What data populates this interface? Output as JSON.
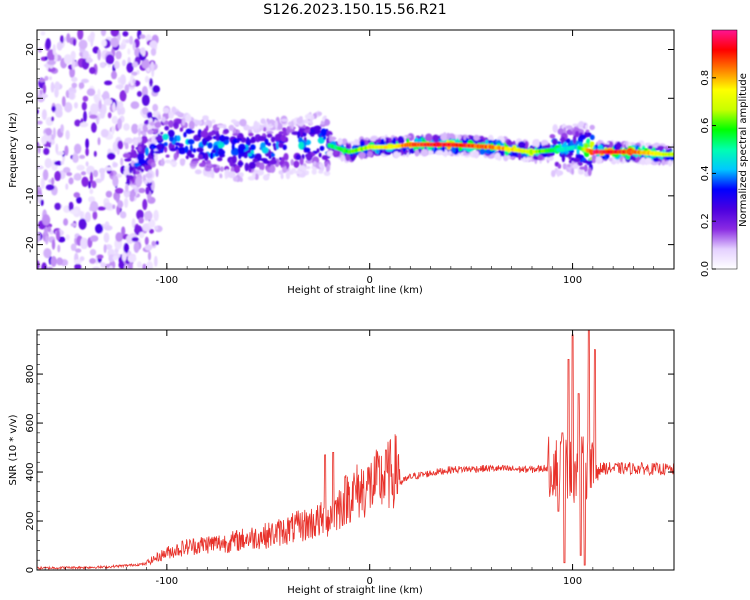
{
  "title": "S126.2023.150.15.56.R21",
  "chart_data": [
    {
      "type": "heatmap",
      "xlabel": "Height of straight line (km)",
      "ylabel": "Frequency (Hz)",
      "xlim": [
        -164,
        150
      ],
      "ylim": [
        -25,
        24
      ],
      "xticks": [
        -100,
        0,
        100
      ],
      "yticks": [
        -20,
        -10,
        0,
        10,
        20
      ],
      "colorbar": {
        "label": "Normalized spectral amplitude",
        "range": [
          0,
          1
        ],
        "ticks": [
          "0.0",
          "0.2",
          "0.4",
          "0.6",
          "0.8"
        ],
        "tick_values": [
          0,
          0.2,
          0.4,
          0.6,
          0.8
        ],
        "colormap": [
          "#ffffff",
          "#e4d0ff",
          "#8a2be2",
          "#4b00e0",
          "#0000ff",
          "#00c8ff",
          "#00ffb0",
          "#00ff00",
          "#c8ff00",
          "#ffff00",
          "#ff8000",
          "#ff0000",
          "#ff1493"
        ]
      },
      "ridge": {
        "x": [
          -120,
          -100,
          -80,
          -60,
          -40,
          -25,
          -10,
          0,
          10,
          20,
          40,
          60,
          80,
          95,
          102,
          110,
          130,
          145
        ],
        "freq": [
          -5,
          2,
          0,
          -1,
          0,
          1,
          -1,
          0,
          0,
          0.5,
          0.5,
          0,
          -1,
          -0.5,
          0,
          -1,
          -1,
          -1.5
        ],
        "amplitude": [
          0.35,
          0.45,
          0.5,
          0.45,
          0.4,
          0.5,
          0.6,
          0.7,
          0.75,
          0.9,
          0.95,
          0.85,
          0.7,
          0.5,
          0.45,
          0.95,
          0.9,
          0.7
        ]
      }
    },
    {
      "type": "line",
      "xlabel": "Height of straight line (km)",
      "ylabel": "SNR (10 * v/v)",
      "xlim": [
        -164,
        150
      ],
      "ylim": [
        0,
        980
      ],
      "xticks": [
        -100,
        0,
        100
      ],
      "yticks": [
        0,
        200,
        400,
        600,
        800
      ],
      "color": "#e8312a",
      "envelope": {
        "x": [
          -164,
          -130,
          -110,
          -100,
          -90,
          -80,
          -70,
          -60,
          -50,
          -40,
          -30,
          -20,
          -10,
          0,
          10,
          20,
          40,
          60,
          80,
          90,
          95,
          100,
          105,
          110,
          115,
          130,
          150
        ],
        "y": [
          8,
          12,
          25,
          60,
          80,
          90,
          95,
          110,
          120,
          140,
          160,
          180,
          260,
          290,
          330,
          380,
          410,
          415,
          410,
          420,
          430,
          400,
          420,
          410,
          415,
          415,
          410
        ]
      },
      "spikes": [
        {
          "x": -22,
          "y": 470
        },
        {
          "x": -18,
          "y": 480
        },
        {
          "x": 8,
          "y": 490
        },
        {
          "x": 95,
          "y": 560
        },
        {
          "x": 98,
          "y": 860
        },
        {
          "x": 100,
          "y": 960
        },
        {
          "x": 103,
          "y": 720
        },
        {
          "x": 108,
          "y": 980
        },
        {
          "x": 111,
          "y": 900
        }
      ],
      "dips": [
        {
          "x": 93,
          "y": 240
        },
        {
          "x": 96,
          "y": 30
        },
        {
          "x": 104,
          "y": 60
        },
        {
          "x": 106,
          "y": 20
        }
      ]
    }
  ]
}
